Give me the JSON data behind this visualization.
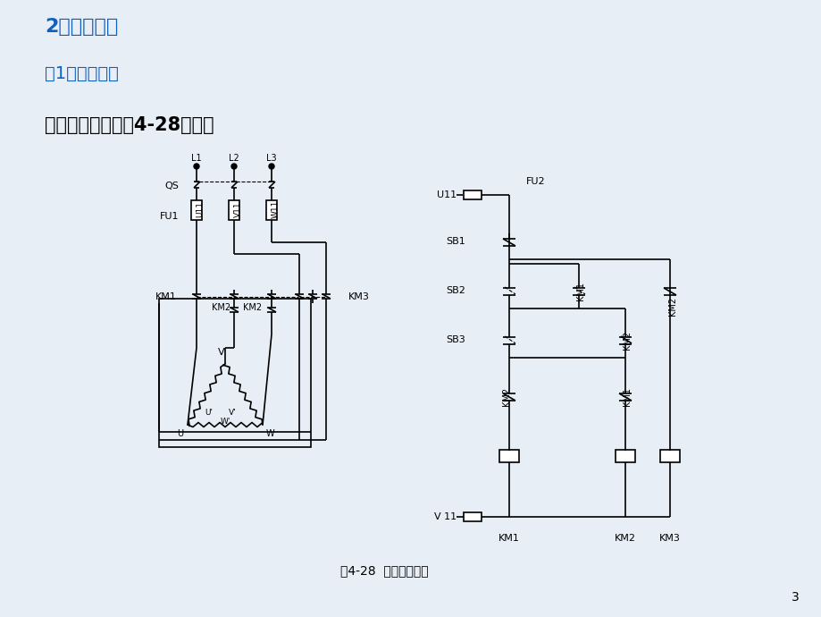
{
  "title1": "2、实训内容",
  "title2": "（1）接线调试",
  "title3": "反接制动线路如图4-28所示。",
  "caption": "图4-28  反接制动线路",
  "bg_color": "#e8eef5",
  "title1_color": "#1060c0",
  "title2_color": "#1060c0",
  "title3_color": "#000000",
  "page_num": "3"
}
